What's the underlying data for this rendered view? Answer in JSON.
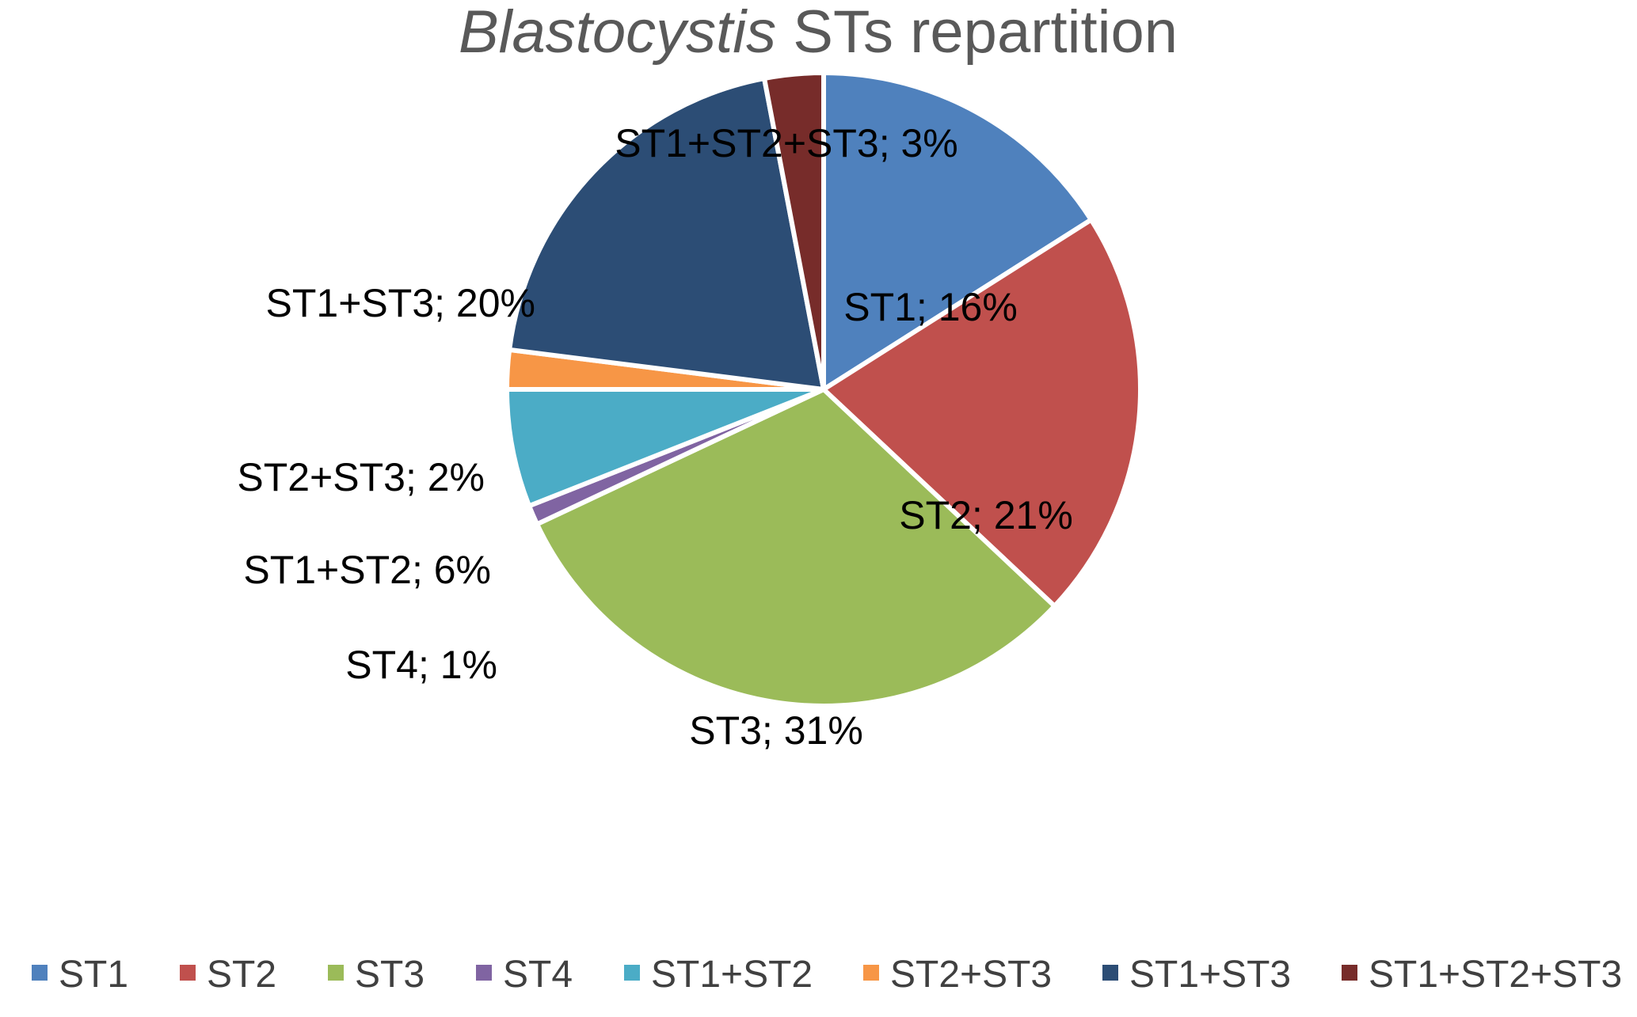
{
  "chart_data": {
    "type": "pie",
    "title_italic": "Blastocystis",
    "title_rest": " STs repartition",
    "label_separator": "; ",
    "slices": [
      {
        "name": "ST1",
        "value": 16,
        "display": "16%",
        "color": "#4F81BD"
      },
      {
        "name": "ST2",
        "value": 21,
        "display": "21%",
        "color": "#C0504D"
      },
      {
        "name": "ST3",
        "value": 31,
        "display": "31%",
        "color": "#9BBB59"
      },
      {
        "name": "ST4",
        "value": 1,
        "display": "1%",
        "color": "#8064A2"
      },
      {
        "name": "ST1+ST2",
        "value": 6,
        "display": "6%",
        "color": "#4BACC6"
      },
      {
        "name": "ST2+ST3",
        "value": 2,
        "display": "2%",
        "color": "#F79646"
      },
      {
        "name": "ST1+ST3",
        "value": 20,
        "display": "20%",
        "color": "#2C4D75"
      },
      {
        "name": "ST1+ST2+ST3",
        "value": 3,
        "display": "3%",
        "color": "#772C2A"
      }
    ],
    "legend_position": "bottom"
  }
}
